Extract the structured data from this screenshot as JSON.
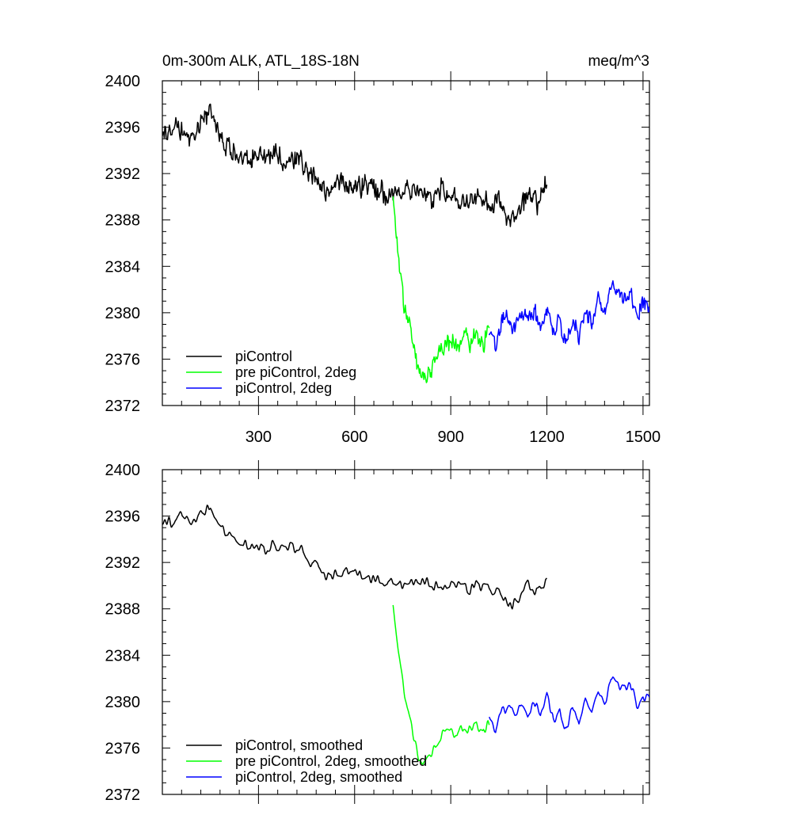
{
  "chart_data": [
    {
      "type": "line",
      "title": "0m-300m ALK, ATL_18S-18N",
      "units": "meq/m^3",
      "xlabel": "",
      "ylabel": "",
      "xlim": [
        0,
        1520
      ],
      "ylim": [
        2372,
        2400
      ],
      "xticks": [
        300,
        600,
        900,
        1200,
        1500
      ],
      "yticks": [
        2372,
        2376,
        2380,
        2384,
        2388,
        2392,
        2396,
        2400
      ],
      "grid": false,
      "legend_position": "bottom-left",
      "series": [
        {
          "name": "piControl",
          "color": "#000000",
          "x": [
            0,
            30,
            60,
            90,
            120,
            150,
            180,
            210,
            240,
            270,
            300,
            330,
            360,
            390,
            420,
            450,
            480,
            510,
            540,
            570,
            600,
            630,
            660,
            690,
            720,
            750,
            780,
            810,
            840,
            870,
            900,
            930,
            960,
            990,
            1020,
            1050,
            1080,
            1110,
            1140,
            1170,
            1200
          ],
          "y": [
            2395.5,
            2395.6,
            2396.0,
            2395.2,
            2396.4,
            2397.3,
            2395.5,
            2394.1,
            2393.5,
            2393.2,
            2393.7,
            2393.1,
            2393.4,
            2393.0,
            2393.3,
            2392.6,
            2391.5,
            2390.6,
            2391.0,
            2391.3,
            2390.8,
            2391.0,
            2390.6,
            2390.4,
            2390.0,
            2390.3,
            2390.2,
            2390.6,
            2389.8,
            2390.4,
            2390.1,
            2389.7,
            2389.8,
            2390.1,
            2389.6,
            2389.7,
            2387.8,
            2388.6,
            2390.3,
            2389.6,
            2390.9
          ]
        },
        {
          "name": "pre piControl, 2deg",
          "color": "#00ff00",
          "x": [
            720,
            735,
            750,
            765,
            780,
            800,
            820,
            840,
            860,
            880,
            900,
            920,
            940,
            960,
            980,
            1000,
            1020
          ],
          "y": [
            2389.8,
            2385.0,
            2381.5,
            2379.5,
            2377.5,
            2375.0,
            2374.2,
            2375.5,
            2376.6,
            2377.2,
            2377.6,
            2377.0,
            2378.0,
            2377.4,
            2378.6,
            2377.0,
            2378.3
          ]
        },
        {
          "name": "piControl, 2deg",
          "color": "#0000ff",
          "x": [
            1020,
            1040,
            1060,
            1080,
            1100,
            1120,
            1140,
            1160,
            1180,
            1200,
            1220,
            1240,
            1260,
            1280,
            1300,
            1320,
            1340,
            1360,
            1380,
            1400,
            1420,
            1440,
            1460,
            1480,
            1500,
            1520
          ],
          "y": [
            2378.0,
            2377.0,
            2379.5,
            2379.8,
            2378.6,
            2380.0,
            2379.0,
            2380.4,
            2378.5,
            2380.6,
            2378.2,
            2379.2,
            2377.5,
            2379.5,
            2378.2,
            2380.5,
            2379.2,
            2381.2,
            2380.0,
            2382.6,
            2381.8,
            2381.2,
            2381.6,
            2379.8,
            2380.8,
            2380.2
          ]
        }
      ]
    },
    {
      "type": "line",
      "title": "",
      "xlabel": "",
      "ylabel": "",
      "xlim": [
        0,
        1520
      ],
      "ylim": [
        2372,
        2400
      ],
      "xticks": [
        300,
        600,
        900,
        1200,
        1500
      ],
      "yticks": [
        2372,
        2376,
        2380,
        2384,
        2388,
        2392,
        2396,
        2400
      ],
      "grid": false,
      "legend_position": "bottom-left",
      "series": [
        {
          "name": "piControl, smoothed",
          "color": "#000000",
          "x": [
            0,
            30,
            60,
            90,
            120,
            150,
            180,
            210,
            240,
            270,
            300,
            330,
            360,
            390,
            420,
            450,
            480,
            510,
            540,
            570,
            600,
            630,
            660,
            690,
            720,
            750,
            780,
            810,
            840,
            870,
            900,
            930,
            960,
            990,
            1020,
            1050,
            1080,
            1110,
            1140,
            1170,
            1200
          ],
          "y": [
            2395.4,
            2395.5,
            2396.0,
            2395.3,
            2396.2,
            2397.0,
            2395.4,
            2394.2,
            2393.6,
            2393.3,
            2393.6,
            2393.2,
            2393.4,
            2393.1,
            2393.2,
            2392.6,
            2391.6,
            2390.8,
            2391.0,
            2391.2,
            2390.9,
            2391.0,
            2390.7,
            2390.4,
            2390.1,
            2390.3,
            2390.2,
            2390.5,
            2389.9,
            2390.3,
            2390.1,
            2389.8,
            2389.8,
            2390.0,
            2389.6,
            2389.6,
            2388.0,
            2388.6,
            2390.1,
            2389.6,
            2390.6
          ]
        },
        {
          "name": "pre piControl, 2deg, smoothed",
          "color": "#00ff00",
          "x": [
            720,
            735,
            750,
            765,
            780,
            800,
            820,
            840,
            860,
            880,
            900,
            920,
            940,
            960,
            980,
            1000,
            1020
          ],
          "y": [
            2388.4,
            2384.8,
            2381.6,
            2379.6,
            2377.6,
            2375.2,
            2374.6,
            2375.6,
            2376.6,
            2377.2,
            2377.5,
            2377.0,
            2377.8,
            2377.3,
            2378.4,
            2377.2,
            2378.0
          ]
        },
        {
          "name": "piControl, 2deg, smoothed",
          "color": "#0000ff",
          "x": [
            1020,
            1040,
            1060,
            1080,
            1100,
            1120,
            1140,
            1160,
            1180,
            1200,
            1220,
            1240,
            1260,
            1280,
            1300,
            1320,
            1340,
            1360,
            1380,
            1400,
            1420,
            1440,
            1460,
            1480,
            1500,
            1520
          ],
          "y": [
            2378.6,
            2377.2,
            2379.4,
            2379.6,
            2378.7,
            2379.9,
            2379.1,
            2380.2,
            2378.6,
            2380.4,
            2378.4,
            2379.2,
            2377.7,
            2379.4,
            2378.3,
            2380.4,
            2379.3,
            2381.0,
            2380.0,
            2382.4,
            2381.6,
            2381.0,
            2381.4,
            2379.6,
            2380.6,
            2380.0
          ]
        }
      ]
    }
  ]
}
